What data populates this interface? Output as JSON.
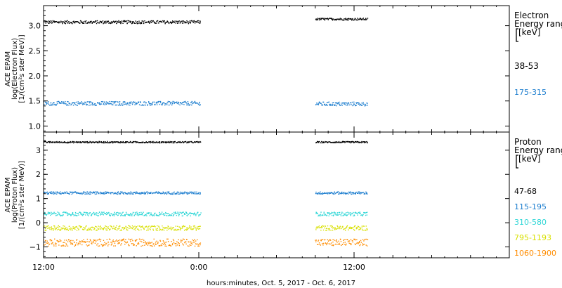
{
  "chart_data": [
    {
      "type": "scatter",
      "panel": "electron",
      "ylabel_lines": [
        "ACE EPAM",
        "log(Electron Flux)",
        "[1/(cm²s ster MeV)]"
      ],
      "legend_title_lines": [
        "Electron",
        "Energy ranges",
        "[keV]"
      ],
      "ylim": [
        0.88,
        3.4
      ],
      "yticks": [
        1.0,
        1.5,
        2.0,
        2.5,
        3.0
      ],
      "ytick_labels": [
        "1.0",
        "1.5",
        "2.0",
        "2.5",
        "3.0"
      ],
      "series": [
        {
          "name": "38-53",
          "color": "#000000",
          "segments": [
            {
              "x": [
                0,
                12.1
              ],
              "mean": 3.08,
              "jitter": 0.03
            },
            {
              "x": [
                21.0,
                25.0
              ],
              "mean": 3.14,
              "jitter": 0.02
            }
          ]
        },
        {
          "name": "175-315",
          "color": "#1f7fcf",
          "segments": [
            {
              "x": [
                0,
                12.1
              ],
              "mean": 1.46,
              "jitter": 0.04
            },
            {
              "x": [
                21.0,
                25.0
              ],
              "mean": 1.45,
              "jitter": 0.04
            }
          ]
        }
      ]
    },
    {
      "type": "scatter",
      "panel": "proton",
      "ylabel_lines": [
        "ACE EPAM",
        "log(Proton Flux)",
        "[1/(cm²s ster MeV)]"
      ],
      "legend_title_lines": [
        "Proton",
        "Energy ranges",
        "[keV]"
      ],
      "ylim": [
        -1.45,
        3.75
      ],
      "yticks": [
        -1,
        0,
        1,
        2,
        3
      ],
      "ytick_labels": [
        "−1",
        "0",
        "1",
        "2",
        "3"
      ],
      "series": [
        {
          "name": "47-68",
          "color": "#000000",
          "segments": [
            {
              "x": [
                0,
                12.1
              ],
              "mean": 3.35,
              "jitter": 0.03
            },
            {
              "x": [
                21.0,
                25.0
              ],
              "mean": 3.35,
              "jitter": 0.03
            }
          ]
        },
        {
          "name": "115-195",
          "color": "#1f7fcf",
          "segments": [
            {
              "x": [
                0,
                12.1
              ],
              "mean": 1.25,
              "jitter": 0.05
            },
            {
              "x": [
                21.0,
                25.0
              ],
              "mean": 1.25,
              "jitter": 0.05
            }
          ]
        },
        {
          "name": "310-580",
          "color": "#2fd6d6",
          "segments": [
            {
              "x": [
                0,
                12.1
              ],
              "mean": 0.38,
              "jitter": 0.08
            },
            {
              "x": [
                21.0,
                25.0
              ],
              "mean": 0.38,
              "jitter": 0.08
            }
          ]
        },
        {
          "name": "795-1193",
          "color": "#d8e000",
          "segments": [
            {
              "x": [
                0,
                12.1
              ],
              "mean": -0.2,
              "jitter": 0.1
            },
            {
              "x": [
                21.0,
                25.0
              ],
              "mean": -0.2,
              "jitter": 0.1
            }
          ]
        },
        {
          "name": "1060-1900",
          "color": "#ff8c00",
          "segments": [
            {
              "x": [
                0,
                12.1
              ],
              "mean": -0.8,
              "jitter": 0.15
            },
            {
              "x": [
                21.0,
                25.0
              ],
              "mean": -0.8,
              "jitter": 0.15
            }
          ]
        }
      ]
    }
  ],
  "x_axis": {
    "range_hours": [
      0,
      36
    ],
    "ticks": [
      0,
      12,
      24
    ],
    "tick_labels": [
      "12:00",
      "0:00",
      "12:00"
    ],
    "title": "hours:minutes, Oct.  5, 2017 - Oct.  6, 2017"
  }
}
